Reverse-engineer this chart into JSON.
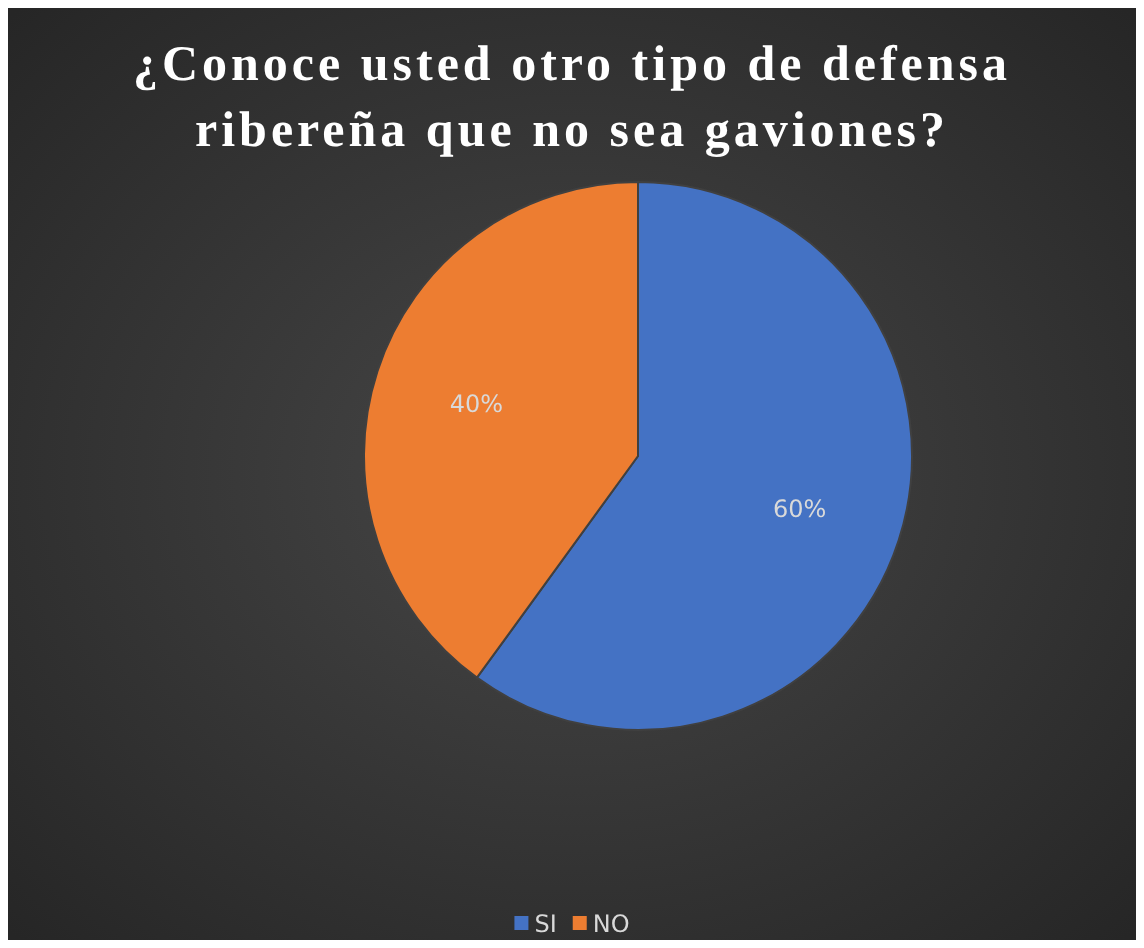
{
  "chart_data": {
    "type": "pie",
    "title": "¿Conoce usted otro tipo de defensa ribereña que no sea gaviones?",
    "categories": [
      "SI",
      "NO"
    ],
    "values": [
      60,
      40
    ],
    "colors": [
      "#4472c4",
      "#ed7d31"
    ],
    "value_labels": [
      "60%",
      "40%"
    ],
    "legend": "bottom"
  }
}
